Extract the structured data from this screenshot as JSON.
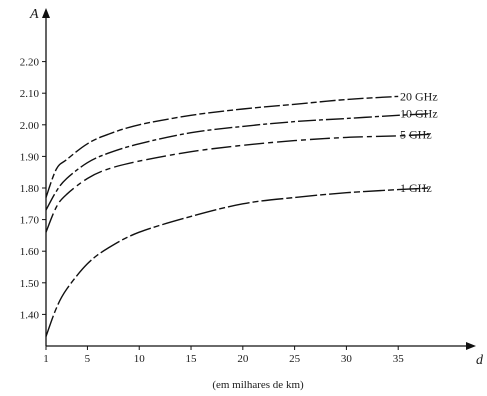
{
  "chart_data": {
    "type": "line",
    "title": "",
    "ylabel": "A",
    "xlabel": "d",
    "x_caption": "(em milhares de km)",
    "xlim": [
      1,
      40
    ],
    "ylim": [
      1.3,
      2.3
    ],
    "x_ticks": [
      1,
      5,
      10,
      15,
      20,
      25,
      30,
      35
    ],
    "x_tick_labels": [
      "1",
      "5",
      "10",
      "15",
      "20",
      "25",
      "30",
      "35"
    ],
    "y_ticks": [
      1.4,
      1.5,
      1.6,
      1.7,
      1.8,
      1.9,
      2.0,
      2.1,
      2.2
    ],
    "y_tick_labels": [
      "1.40",
      "1.50",
      "1.60",
      "1.70",
      "1.80",
      "1.90",
      "2.00",
      "2.10",
      "2.20"
    ],
    "grid": false,
    "series": [
      {
        "name": "20 GHz",
        "x": [
          1,
          2,
          3,
          5,
          7,
          10,
          15,
          20,
          25,
          30,
          35
        ],
        "y": [
          1.77,
          1.86,
          1.89,
          1.94,
          1.97,
          2.0,
          2.03,
          2.05,
          2.065,
          2.08,
          2.09
        ]
      },
      {
        "name": "10 GHz",
        "x": [
          1,
          2,
          3,
          5,
          7,
          10,
          15,
          20,
          25,
          30,
          35,
          38
        ],
        "y": [
          1.73,
          1.79,
          1.83,
          1.88,
          1.91,
          1.94,
          1.975,
          1.995,
          2.01,
          2.02,
          2.03,
          2.035
        ]
      },
      {
        "name": "5 GHz",
        "x": [
          1,
          2,
          3,
          5,
          7,
          10,
          15,
          20,
          25,
          30,
          35,
          38
        ],
        "y": [
          1.66,
          1.74,
          1.78,
          1.83,
          1.86,
          1.885,
          1.915,
          1.935,
          1.95,
          1.96,
          1.965,
          1.97
        ]
      },
      {
        "name": "1 GHz",
        "x": [
          1,
          2,
          3,
          5,
          7,
          10,
          15,
          20,
          25,
          30,
          35,
          38
        ],
        "y": [
          1.33,
          1.42,
          1.48,
          1.56,
          1.61,
          1.66,
          1.71,
          1.75,
          1.77,
          1.785,
          1.795,
          1.8
        ]
      }
    ]
  }
}
